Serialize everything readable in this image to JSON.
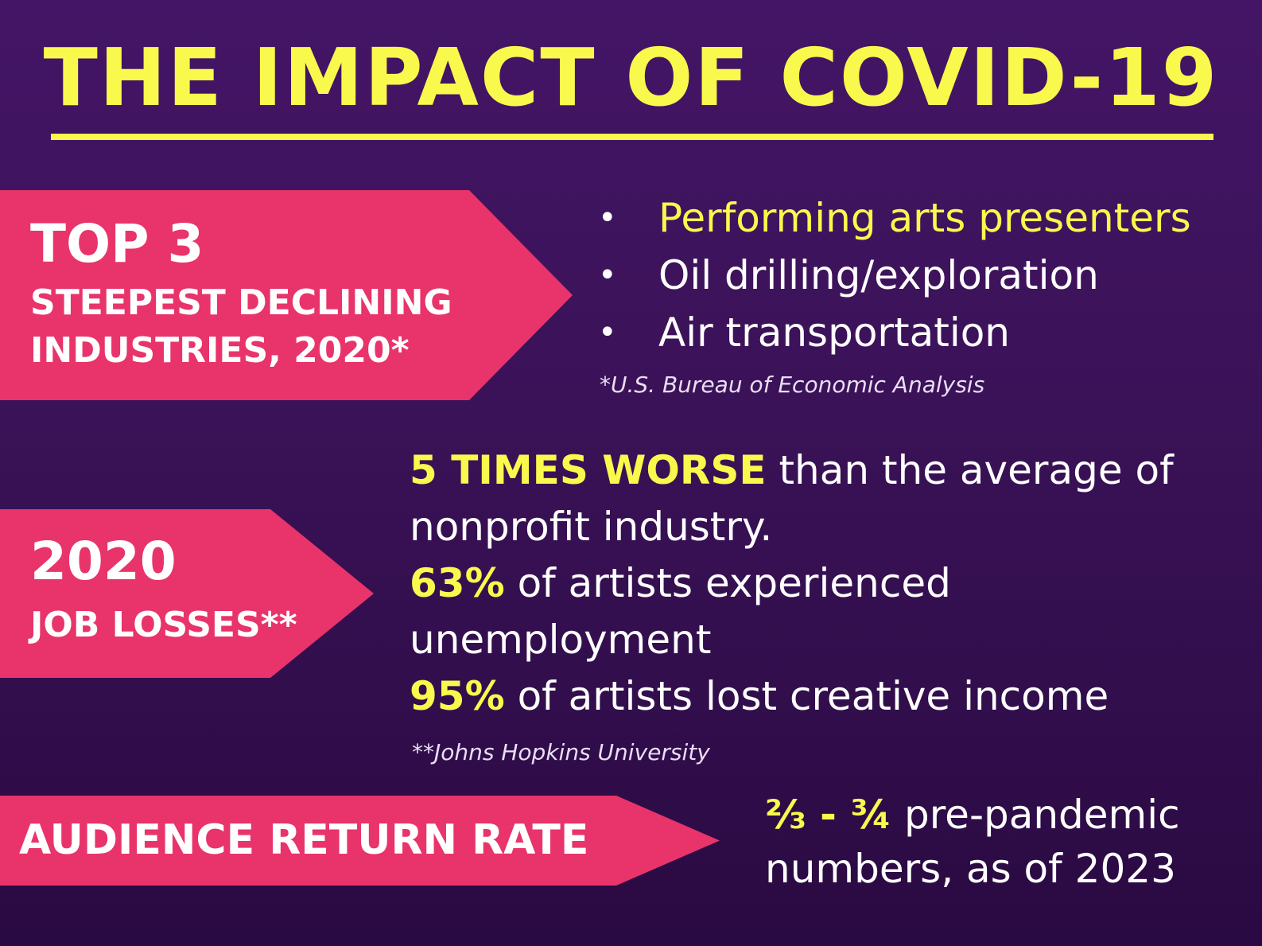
{
  "title": "THE IMPACT OF COVID-19",
  "section1": {
    "banner_big": "TOP 3",
    "banner_small_line1": "STEEPEST DECLINING",
    "banner_small_line2": "INDUSTRIES, 2020*",
    "bullet_symbol": "•",
    "items": [
      "Performing arts presenters",
      "Oil drilling/exploration",
      "Air transportation"
    ],
    "source": "*U.S. Bureau of Economic Analysis"
  },
  "section2": {
    "banner_big": "2020",
    "banner_small": "JOB LOSSES**",
    "line1_highlight": "5 TIMES WORSE",
    "line1_rest": " than the average of",
    "line2": "nonprofit industry.",
    "line3_highlight": "63%",
    "line3_rest": " of artists experienced",
    "line4": "unemployment",
    "line5_highlight": "95%",
    "line5_rest": " of artists lost creative income",
    "source": "**Johns Hopkins University"
  },
  "section3": {
    "banner_label": "AUDIENCE RETURN RATE",
    "line1_highlight": "⅔ - ¾",
    "line1_rest": " pre-pandemic",
    "line2": "numbers, as of 2023"
  },
  "colors": {
    "accent_yellow": "#f8f94c",
    "banner_pink": "#e8346a",
    "background_purple": "#3a1257"
  }
}
